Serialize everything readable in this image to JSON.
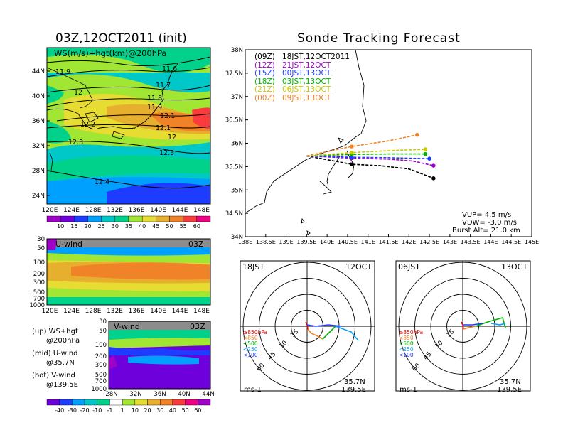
{
  "titles": {
    "left": "03Z,12OCT2011 (init)",
    "right": "Sonde Tracking Forecast"
  },
  "map_panel": {
    "label": "WS(m/s)+hgt(km)@200hPa",
    "lat_ticks": [
      "44N",
      "40N",
      "36N",
      "32N",
      "28N",
      "24N"
    ],
    "lon_ticks": [
      "120E",
      "124E",
      "128E",
      "132E",
      "136E",
      "140E",
      "144E",
      "148E"
    ],
    "contour_labels": [
      "11.9",
      "11.6",
      "12",
      "11.7",
      "11.8",
      "11.9",
      "12.1",
      "12.2",
      "12.3",
      "12.1",
      "12.3",
      "12.4",
      "12"
    ],
    "colorbar_labels": [
      "10",
      "15",
      "20",
      "25",
      "30",
      "35",
      "40",
      "45",
      "50",
      "55",
      "60"
    ],
    "colors": [
      "#a000c8",
      "#6e00dc",
      "#1e3cff",
      "#00a0ff",
      "#00c8c8",
      "#00d28c",
      "#a0e632",
      "#e6dc32",
      "#e6af2d",
      "#f08228",
      "#fa3c3c",
      "#f00082"
    ]
  },
  "u_panel": {
    "label": "U-wind",
    "time": "03Z",
    "p_ticks": [
      "30",
      "50",
      "100",
      "200",
      "300",
      "500",
      "700",
      "1000"
    ],
    "lon_ticks": [
      "120E",
      "124E",
      "128E",
      "132E",
      "136E",
      "140E",
      "144E",
      "148E"
    ]
  },
  "v_panel": {
    "label": "V-wind",
    "time": "03Z",
    "p_ticks": [
      "30",
      "50",
      "100",
      "200",
      "300",
      "500",
      "700",
      "1000"
    ],
    "lat_ticks": [
      "28N",
      "32N",
      "36N",
      "40N",
      "44N"
    ],
    "colorbar_labels": [
      "-40",
      "-30",
      "-20",
      "-10",
      "-1",
      "1",
      "10",
      "20",
      "30",
      "40",
      "50",
      "60"
    ],
    "colors": [
      "#1e3cff",
      "#00a0ff",
      "#00c8c8",
      "#00d28c",
      "#a0e632",
      "#e6dc32",
      "#e6af2d",
      "#f08228",
      "#fa3c3c",
      "#f00082"
    ],
    "neg_colors": [
      "#6e00dc",
      "#1e3cff",
      "#00a0ff",
      "#00c8c8",
      "#a0e632",
      "#ffffff"
    ]
  },
  "notes": [
    "(up) WS+hgt",
    "@200hPa",
    "(mid) U-wind",
    "@35.7N",
    "(bot) V-wind",
    "@139.5E"
  ],
  "track_panel": {
    "legend": [
      {
        "utc": "(09Z)",
        "jst": "18JST,12OCT2011",
        "color": "#000000"
      },
      {
        "utc": "(12Z)",
        "jst": "21JST,12OCT",
        "color": "#a000c8"
      },
      {
        "utc": "(15Z)",
        "jst": "00JST,13OCT",
        "color": "#1e3cff"
      },
      {
        "utc": "(18Z)",
        "jst": "03JST,13OCT",
        "color": "#00b400"
      },
      {
        "utc": "(21Z)",
        "jst": "06JST,13OCT",
        "color": "#c8c800"
      },
      {
        "utc": "(00Z)",
        "jst": "09JST,13OCT",
        "color": "#f08228"
      }
    ],
    "lat_ticks": [
      "38N",
      "37.5N",
      "37N",
      "36.5N",
      "36N",
      "35.5N",
      "35N",
      "34.5N",
      "34N"
    ],
    "lon_ticks": [
      "138E",
      "138.5E",
      "139E",
      "139.5E",
      "140E",
      "140.5E",
      "141E",
      "141.5E",
      "142E",
      "142.5E",
      "143E",
      "143.5E",
      "144E",
      "144.5E",
      "145E"
    ],
    "params": [
      "VUP= 4.5 m/s",
      "VDW= -3.0 m/s",
      "Burst Alt= 21.0 km"
    ]
  },
  "chart_data": [
    {
      "type": "line",
      "title": "Sonde Tracking Forecast",
      "xlim": [
        138,
        145
      ],
      "ylim": [
        34,
        38
      ],
      "series": [
        {
          "name": "(09Z) 18JST,12OCT2011",
          "x": [
            139.5,
            140.6,
            141.3,
            142.0,
            142.6
          ],
          "y": [
            35.73,
            35.55,
            35.52,
            35.45,
            35.25
          ]
        },
        {
          "name": "(12Z) 21JST,12OCT",
          "x": [
            139.5,
            140.6,
            141.5,
            142.1,
            142.6
          ],
          "y": [
            35.73,
            35.68,
            35.66,
            35.62,
            35.52
          ]
        },
        {
          "name": "(15Z) 00JST,13OCT",
          "x": [
            139.5,
            140.6,
            141.5,
            142.5
          ],
          "y": [
            35.73,
            35.7,
            35.69,
            35.67
          ]
        },
        {
          "name": "(18Z) 03JST,13OCT",
          "x": [
            139.5,
            140.6,
            141.5,
            142.4
          ],
          "y": [
            35.73,
            35.76,
            35.77,
            35.77
          ]
        },
        {
          "name": "(21Z) 06JST,13OCT",
          "x": [
            139.5,
            140.6,
            141.5,
            142.4
          ],
          "y": [
            35.73,
            35.8,
            35.84,
            35.87
          ]
        },
        {
          "name": "(00Z) 09JST,13OCT",
          "x": [
            139.5,
            140.6,
            141.5,
            142.2
          ],
          "y": [
            35.73,
            35.93,
            36.05,
            36.18
          ]
        }
      ]
    }
  ],
  "hodo_left": {
    "time": "18JST",
    "date": "12OCT",
    "legend": [
      "≥850hPa",
      "<850",
      "<500",
      "<250",
      "<100"
    ],
    "legend_colors": [
      "#e60000",
      "#f08228",
      "#00b400",
      "#00a0ff",
      "#1e3cff"
    ],
    "rings": [
      "15",
      "30",
      "45",
      "60"
    ],
    "unit": "ms-1",
    "loc": [
      "35.7N",
      "139.5E"
    ],
    "colors": [
      "#e60000",
      "#f08228",
      "#00b400",
      "#00a0ff",
      "#1e3cff"
    ]
  },
  "hodo_right": {
    "time": "06JST",
    "date": "13OCT",
    "legend": [
      "≥850hPa",
      "<850",
      "<500",
      "<250",
      "<100"
    ],
    "legend_colors": [
      "#e60000",
      "#f08228",
      "#00b400",
      "#00a0ff",
      "#1e3cff"
    ],
    "rings": [
      "15",
      "30",
      "45",
      "60"
    ],
    "unit": "ms-1",
    "loc": [
      "35.7N",
      "139.5E"
    ],
    "colors": [
      "#e60000",
      "#f08228",
      "#00b400",
      "#00a0ff",
      "#1e3cff"
    ]
  }
}
